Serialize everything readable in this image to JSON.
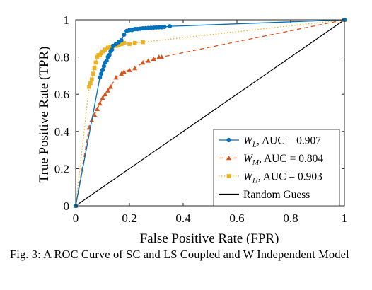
{
  "chart_data": {
    "type": "line",
    "xlabel": "False Positive Rate (FPR)",
    "ylabel": "True Positive Rate (TPR)",
    "xlim": [
      0,
      1
    ],
    "ylim": [
      0,
      1
    ],
    "x_ticks": [
      "0",
      "0.2",
      "0.4",
      "0.6",
      "0.8",
      "1"
    ],
    "y_ticks": [
      "0",
      "0.2",
      "0.4",
      "0.6",
      "0.8",
      "1"
    ],
    "grid": false,
    "legend_position": "bottom-right",
    "series": [
      {
        "name": "W_L, AUC = 0.907",
        "color": "#0072BD",
        "marker": "circle",
        "line_style": "solid",
        "x": [
          0,
          0.09,
          0.095,
          0.1,
          0.105,
          0.11,
          0.115,
          0.12,
          0.125,
          0.13,
          0.135,
          0.14,
          0.15,
          0.16,
          0.17,
          0.18,
          0.19,
          0.2,
          0.21,
          0.22,
          0.23,
          0.24,
          0.25,
          0.26,
          0.27,
          0.28,
          0.29,
          0.3,
          0.31,
          0.32,
          0.33,
          0.35,
          1
        ],
        "y": [
          0,
          0.69,
          0.71,
          0.73,
          0.75,
          0.77,
          0.78,
          0.8,
          0.81,
          0.83,
          0.84,
          0.86,
          0.87,
          0.88,
          0.89,
          0.92,
          0.94,
          0.945,
          0.945,
          0.95,
          0.95,
          0.952,
          0.954,
          0.955,
          0.956,
          0.957,
          0.958,
          0.959,
          0.96,
          0.96,
          0.962,
          0.965,
          1
        ]
      },
      {
        "name": "W_M, AUC = 0.804",
        "color": "#D95319",
        "marker": "triangle",
        "line_style": "dashed",
        "x": [
          0,
          0.05,
          0.06,
          0.07,
          0.08,
          0.09,
          0.1,
          0.11,
          0.12,
          0.13,
          0.15,
          0.17,
          0.18,
          0.2,
          0.22,
          0.25,
          0.27,
          0.29,
          0.31,
          0.32,
          1
        ],
        "y": [
          0,
          0.42,
          0.46,
          0.49,
          0.52,
          0.55,
          0.58,
          0.6,
          0.62,
          0.64,
          0.69,
          0.71,
          0.72,
          0.73,
          0.74,
          0.77,
          0.78,
          0.79,
          0.8,
          0.8,
          1
        ]
      },
      {
        "name": "W_H, AUC = 0.903",
        "color": "#EDB120",
        "marker": "square",
        "line_style": "dotted",
        "x": [
          0,
          0.05,
          0.055,
          0.06,
          0.065,
          0.07,
          0.075,
          0.08,
          0.085,
          0.09,
          0.095,
          0.1,
          0.11,
          0.12,
          0.13,
          0.14,
          0.15,
          0.16,
          0.17,
          0.18,
          0.2,
          0.22,
          0.25,
          1
        ],
        "y": [
          0,
          0.64,
          0.66,
          0.68,
          0.71,
          0.74,
          0.77,
          0.8,
          0.81,
          0.81,
          0.82,
          0.83,
          0.84,
          0.85,
          0.855,
          0.86,
          0.86,
          0.865,
          0.87,
          0.875,
          0.87,
          0.875,
          0.88,
          1
        ]
      },
      {
        "name": "Random Guess",
        "color": "#000000",
        "marker": "none",
        "line_style": "solid",
        "x": [
          0,
          1
        ],
        "y": [
          0,
          1
        ]
      }
    ],
    "legend": [
      {
        "main": "W",
        "sub": "L",
        "rest": ", AUC = 0.907"
      },
      {
        "main": "W",
        "sub": "M",
        "rest": ", AUC = 0.804"
      },
      {
        "main": "W",
        "sub": "H",
        "rest": ", AUC = 0.903"
      },
      {
        "main": "Random Guess",
        "sub": "",
        "rest": ""
      }
    ]
  },
  "caption": "Fig. 3: A ROC Curve of SC and LS Coupled and W Independent Model"
}
